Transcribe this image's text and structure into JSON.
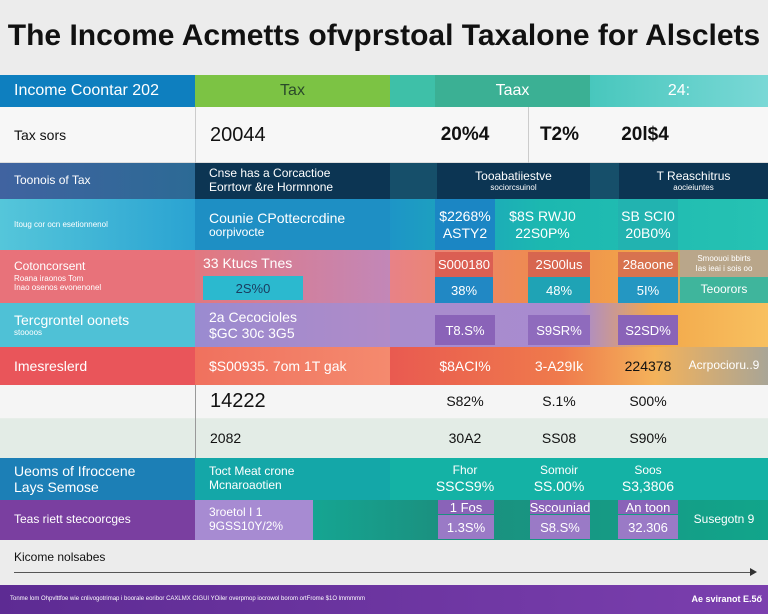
{
  "title": "The Income Acmetts ofvprstoal Taxalone for Alsclets",
  "header": {
    "col_a": "Income Coontar 202",
    "col_b": "Tax",
    "col_c": "Taax",
    "col_d": "24:"
  },
  "row_years": {
    "label": "Tax sors",
    "v1": "20044",
    "v2": "20%4",
    "v3": "T2%",
    "v4": "20l$4"
  },
  "row_dark": {
    "label": "Toonois of Tax",
    "b1": "Cnse has a Corcactioe",
    "b2": "Eorrtovr &re Hormnone",
    "c1": "Tooabatiiestve",
    "c2": "sociorcsuinol",
    "d1": "T Reaschitrus",
    "d2": "aocieiuntes"
  },
  "row_cyan": {
    "label": "Itoug cor ocn esetionnenol",
    "b1": "Counie CPottecrcdine",
    "b2": "oorpivocte",
    "v1a": "$2268%",
    "v1b": "ASTY2",
    "v2a": "$8S RWJ0",
    "v2b": "22S0P%",
    "v3a": "SB SCI0",
    "v3b": "20B0%"
  },
  "row_red": {
    "l1": "Cotoncorsent",
    "l2": "Roana iraonos Tom",
    "l3": "Inao osenos evonenonel",
    "b1": "33 Ktucs Tnes",
    "b2": "2S%0",
    "v1a": "S000180",
    "v1b": "38%",
    "v2a": "2S00lus",
    "v2b": "48%",
    "v3a": "28aoone",
    "v3b": "5I%",
    "v4a": "Smoouoi bbirts",
    "v4b": "Ias ieai i sois oo",
    "v4c": "Teoorors"
  },
  "row_purple": {
    "l1": "Tercgrontel oonets",
    "l2": "stoooos",
    "b1": "2a Cecocioles",
    "b2": "$GC 30c 3G5",
    "v1": "T8.S%",
    "v2": "S9SR%",
    "v3": "S2SD%"
  },
  "row_coral": {
    "label": "Imesreslerd",
    "b1": "$S00935. 7om 1T gak",
    "v1": "$8ACI%",
    "v2": "3-A29Ik",
    "v3": "224378",
    "v4": "Acrpocioru..9"
  },
  "row_white": {
    "b1": "14222",
    "v1": "S82%",
    "v2": "S.1%",
    "v3": "S00%"
  },
  "row_pale": {
    "b1": "2082",
    "v1": "30A2",
    "v2": "SS08",
    "v3": "S90%"
  },
  "row_teal": {
    "l1": "Ueoms of Ifroccene",
    "l2": "Lays Semose",
    "b1": "Toct Meat crone",
    "b2": "Mcnaroaotien",
    "v1a": "Fhor",
    "v1b": "SSCS9%",
    "v2a": "Somoir",
    "v2b": "SS.00%",
    "v3a": "Soos",
    "v3b": "S3,3806"
  },
  "row_violet": {
    "label": "Teas riett stecoorcges",
    "b1": "3roetol I 1",
    "b2": "9GSS10Y/2%",
    "v1a": "1 Fos",
    "v1b": "1.3S%",
    "v2a": "Sscouniad",
    "v2b": "S8.S%",
    "v3a": "An toon",
    "v3b": "32.306",
    "v4": "Susegotn 9"
  },
  "axis": {
    "label": "Kicome nolsabes"
  },
  "footer": {
    "text": "Tonme lom Ohpvlttfoe wie cnlivogotrimap i boorale eoribor CAXLMX CIGUI YOiler overpmop iocrowol borom ortFrome $1O lmmmmm",
    "brand": "Ae sviranot E.5ő"
  },
  "colors": {
    "blue": "#0e7fbf",
    "green": "#7cc344",
    "navy": "#0c3553",
    "cyan": "#23a9cf",
    "teal": "#14b2a5",
    "red": "#e9555a",
    "purple": "#7a3fa0"
  }
}
